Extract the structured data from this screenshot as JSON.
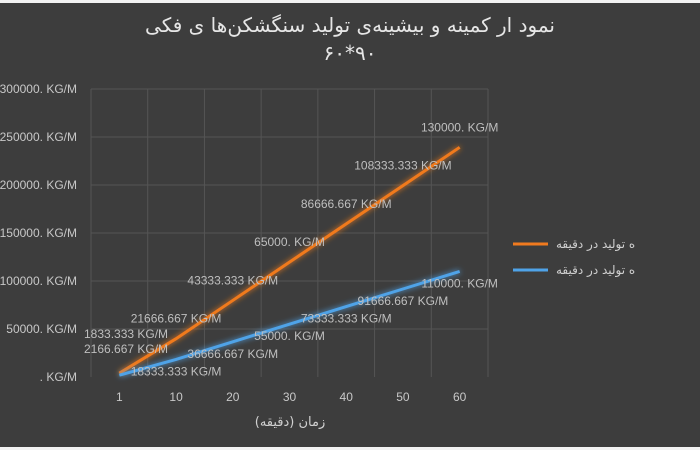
{
  "chart_data": {
    "type": "line",
    "title": "نمود ار کمینه و بیشینه‌ی تولید سنگشکن‌ها ی فکی",
    "subtitle": "۹۰*۶۰",
    "xlabel": "زمان (دقیقه)",
    "ylabel": "",
    "categories": [
      "1",
      "10",
      "20",
      "30",
      "40",
      "50",
      "60"
    ],
    "ylim": [
      0,
      300000
    ],
    "secondary_ylim": [
      0,
      163000
    ],
    "y_ticks": [
      ". KG/M",
      "50000. KG/M",
      "100000. KG/M",
      "150000. KG/M",
      "200000. KG/M",
      "250000. KG/M",
      "300000. KG/M"
    ],
    "grid": true,
    "legend_position": "right",
    "series": [
      {
        "name": "ه تولید در دقیقه",
        "color": "#f07a1f",
        "axis": "secondary",
        "values": [
          2166.667,
          21666.667,
          43333.333,
          65000,
          86666.667,
          108333.333,
          130000
        ],
        "labels": [
          "2166.667 KG/M",
          "21666.667 KG/M",
          "43333.333 KG/M",
          "65000. KG/M",
          "86666.667 KG/M",
          "108333.333 KG/M",
          "130000. KG/M"
        ]
      },
      {
        "name": "ه تولید در دقیقه",
        "color": "#4fa3e8",
        "axis": "primary",
        "values": [
          1833.333,
          18333.333,
          36666.667,
          55000,
          73333.333,
          91666.667,
          110000
        ],
        "labels": [
          "1833.333 KG/M",
          "18333.333 KG/M",
          "36666.667 KG/M",
          "55000. KG/M",
          "73333.333 KG/M",
          "91666.667 KG/M",
          "110000. KG/M"
        ]
      }
    ]
  }
}
